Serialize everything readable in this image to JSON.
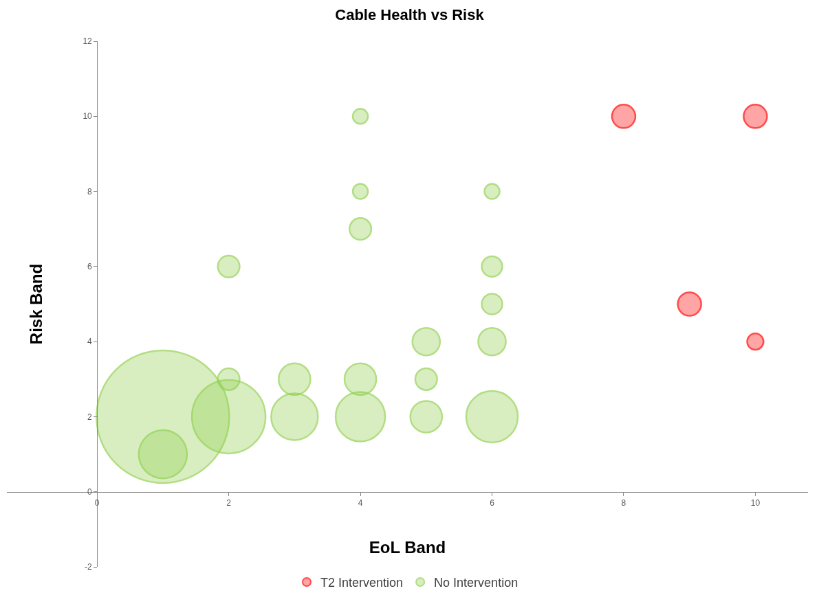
{
  "chart_data": {
    "type": "bubble",
    "title": "Cable Health vs Risk",
    "xlabel": "EoL Band",
    "ylabel": "Risk Band",
    "xlim": [
      -1.37,
      10.8
    ],
    "xticks": [
      0,
      2,
      4,
      6,
      8,
      10
    ],
    "ylim": [
      -2,
      12
    ],
    "yticks": [
      -2,
      0,
      2,
      4,
      6,
      8,
      10,
      12
    ],
    "grid": false,
    "legend": "bottom",
    "series": [
      {
        "name": "T2 Intervention",
        "color": "#ff0000",
        "x": [
          8,
          10,
          9,
          10
        ],
        "values": [
          10,
          10,
          5,
          4
        ],
        "sizes": [
          0.031,
          0.031,
          0.031,
          0.015
        ]
      },
      {
        "name": "No Intervention",
        "color": "#92d050",
        "x": [
          1,
          2,
          1,
          3,
          4,
          5,
          6,
          2,
          3,
          4,
          5,
          5,
          6,
          6,
          6,
          2,
          4,
          4,
          6,
          4
        ],
        "values": [
          2,
          2,
          1,
          2,
          2,
          2,
          2,
          3,
          3,
          3,
          3,
          4,
          4,
          5,
          6,
          6,
          7,
          8,
          8,
          10
        ],
        "sizes": [
          1,
          0.307,
          0.132,
          0.124,
          0.139,
          0.057,
          0.151,
          0.027,
          0.057,
          0.057,
          0.027,
          0.043,
          0.043,
          0.024,
          0.024,
          0.027,
          0.027,
          0.013,
          0.013,
          0.013
        ]
      }
    ]
  }
}
